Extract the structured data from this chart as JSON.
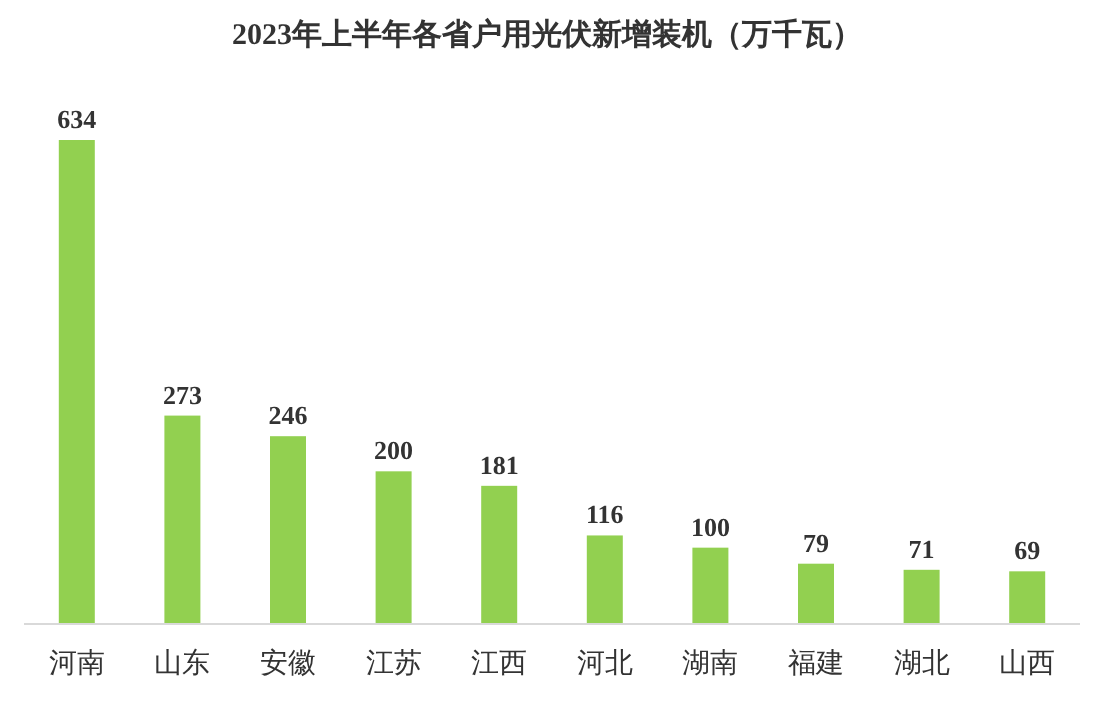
{
  "chart_data": {
    "type": "bar",
    "title": "2023年上半年各省户用光伏新增装机（万千瓦）",
    "categories": [
      "河南",
      "山东",
      "安徽",
      "江苏",
      "江西",
      "河北",
      "湖南",
      "福建",
      "湖北",
      "山西"
    ],
    "values": [
      634,
      273,
      246,
      200,
      181,
      116,
      100,
      79,
      71,
      69
    ],
    "color": "#92d050",
    "data_labels": true
  }
}
